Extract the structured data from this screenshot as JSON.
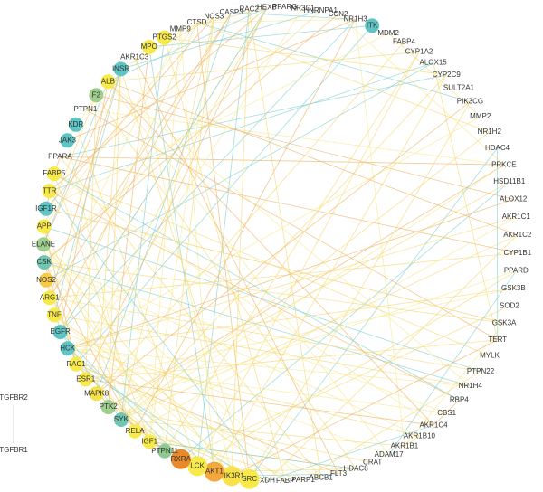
{
  "nodes": [
    {
      "label": "CASP3"
    },
    {
      "label": "RAC2"
    },
    {
      "label": "HEXB"
    },
    {
      "label": "PPARG"
    },
    {
      "label": "NR3C1"
    },
    {
      "label": "HNRNPA1"
    },
    {
      "label": "CCN2"
    },
    {
      "label": "NR1H3"
    },
    {
      "label": "ITK",
      "color": "#5fc4c4"
    },
    {
      "label": "MDM2"
    },
    {
      "label": "FABP4"
    },
    {
      "label": "CYP1A2"
    },
    {
      "label": "ALOX15"
    },
    {
      "label": "CYP2C9"
    },
    {
      "label": "SULT2A1"
    },
    {
      "label": "PIK3CG"
    },
    {
      "label": "MMP2"
    },
    {
      "label": "NR1H2"
    },
    {
      "label": "HDAC4"
    },
    {
      "label": "PRKCE"
    },
    {
      "label": "HSD11B1"
    },
    {
      "label": "ALOX12"
    },
    {
      "label": "AKR1C1"
    },
    {
      "label": "AKR1C2"
    },
    {
      "label": "CYP1B1"
    },
    {
      "label": "PPARD"
    },
    {
      "label": "GSK3B"
    },
    {
      "label": "SOD2"
    },
    {
      "label": "GSK3A"
    },
    {
      "label": "TERT"
    },
    {
      "label": "MYLK"
    },
    {
      "label": "PTPN22"
    },
    {
      "label": "NR1H4"
    },
    {
      "label": "RBP4"
    },
    {
      "label": "CBS1"
    },
    {
      "label": "AKR1C4"
    },
    {
      "label": "AKR1B10"
    },
    {
      "label": "AKR1B1"
    },
    {
      "label": "ADAM17"
    },
    {
      "label": "CRAT"
    },
    {
      "label": "HDAC8"
    },
    {
      "label": "FLT3"
    },
    {
      "label": "ABCB1"
    },
    {
      "label": "PARP1"
    },
    {
      "label": "FABP"
    },
    {
      "label": "XDH"
    },
    {
      "label": "SRC",
      "color": "#f7ea4a"
    },
    {
      "label": "PIK3R1",
      "color": "#f7e24a"
    },
    {
      "label": "AKT1",
      "color": "#f2a83a"
    },
    {
      "label": "LCK",
      "color": "#f7ea4a"
    },
    {
      "label": "RXRA",
      "color": "#e8892c"
    },
    {
      "label": "PTPN11",
      "color": "#8fc98f"
    },
    {
      "label": "IGF1",
      "color": "#f7ea4a"
    },
    {
      "label": "RELA",
      "color": "#f7ea4a"
    },
    {
      "label": "SYK",
      "color": "#6fc7b0"
    },
    {
      "label": "PTK2",
      "color": "#9fcf8f"
    },
    {
      "label": "MAPK8",
      "color": "#f3e24a"
    },
    {
      "label": "ESR1",
      "color": "#f7ea4a"
    },
    {
      "label": "RAC1",
      "color": "#f7ea4a"
    },
    {
      "label": "HCK",
      "color": "#5fc4c4"
    },
    {
      "label": "EGFR",
      "color": "#5fc4c4"
    },
    {
      "label": "TNF",
      "color": "#f7ea4a"
    },
    {
      "label": "ARG1",
      "color": "#f7ea4a"
    },
    {
      "label": "NOS2",
      "color": "#f5c94a"
    },
    {
      "label": "CSK",
      "color": "#6fc7b0"
    },
    {
      "label": "ELANE",
      "color": "#9fcf8f"
    },
    {
      "label": "APP",
      "color": "#f7ea4a"
    },
    {
      "label": "IGF1R",
      "color": "#5fc4c4"
    },
    {
      "label": "TTR",
      "color": "#f7ea4a"
    },
    {
      "label": "FABP5",
      "color": "#f7ea4a"
    },
    {
      "label": "PPARA"
    },
    {
      "label": "JAK3",
      "color": "#5fc4c4"
    },
    {
      "label": "KDR",
      "color": "#5fc4c4"
    },
    {
      "label": "PTPN1"
    },
    {
      "label": "F2",
      "color": "#9fcf8f"
    },
    {
      "label": "ALB",
      "color": "#f7ea4a"
    },
    {
      "label": "INSR",
      "color": "#5fc4c4"
    },
    {
      "label": "AKR1C3"
    },
    {
      "label": "MPO",
      "color": "#f7ea4a"
    },
    {
      "label": "PTGS2",
      "color": "#f7ea4a"
    },
    {
      "label": "MMP9"
    },
    {
      "label": "CTSD"
    },
    {
      "label": "NOS3"
    }
  ],
  "isolated": [
    "TGFBR2",
    "TGFBR1"
  ]
}
